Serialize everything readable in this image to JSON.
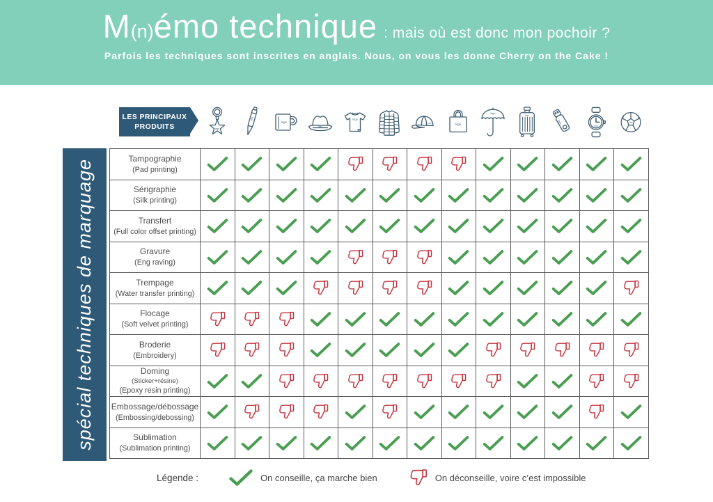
{
  "banner": {
    "title_m": "M",
    "title_n": "(n)",
    "title_rest": "émo technique",
    "title_sub": ": mais où est donc mon pochoir ?",
    "tagline": "Parfois les techniques sont inscrites en anglais. Nous, on vous les donne Cherry on the Cake !",
    "bg_color": "#82cfba"
  },
  "sidebar": {
    "text": "spécial techniques de marquage",
    "bg_color": "#2e5977"
  },
  "products_header": {
    "label": "LES PRINCIPAUX PRODUITS",
    "products": [
      {
        "id": "keychain"
      },
      {
        "id": "pen"
      },
      {
        "id": "mug"
      },
      {
        "id": "hat"
      },
      {
        "id": "tshirt"
      },
      {
        "id": "jacket"
      },
      {
        "id": "cap"
      },
      {
        "id": "bag"
      },
      {
        "id": "umbrella"
      },
      {
        "id": "suitcase"
      },
      {
        "id": "usb"
      },
      {
        "id": "watch"
      },
      {
        "id": "football"
      }
    ],
    "icon_logo_text": "logo"
  },
  "colors": {
    "banner_green": "#82cfba",
    "dark_blue": "#2e5977",
    "check_green": "#4a9e52",
    "thumb_red": "#c2333e",
    "icon_stroke": "#3e5c71"
  },
  "chart_data": {
    "type": "table",
    "title": "M(n)émo technique : mais où est donc mon pochoir ?",
    "columns": [
      "keychain",
      "pen",
      "mug",
      "hat",
      "tshirt",
      "jacket",
      "cap",
      "bag",
      "umbrella",
      "suitcase",
      "usb",
      "watch",
      "football"
    ],
    "rows": [
      {
        "fr": "Tampographie",
        "en": "(Pad printing)",
        "values": [
          "check",
          "check",
          "check",
          "check",
          "no",
          "no",
          "no",
          "no",
          "check",
          "check",
          "check",
          "check",
          "check"
        ]
      },
      {
        "fr": "Sérigraphie",
        "en": "(Silk printing)",
        "values": [
          "check",
          "check",
          "check",
          "check",
          "check",
          "check",
          "check",
          "check",
          "check",
          "check",
          "check",
          "check",
          "check"
        ]
      },
      {
        "fr": "Transfert",
        "en": "(Full color offset printing)",
        "values": [
          "check",
          "check",
          "check",
          "check",
          "check",
          "check",
          "check",
          "check",
          "check",
          "check",
          "check",
          "check",
          "check"
        ]
      },
      {
        "fr": "Gravure",
        "en": "(Eng raving)",
        "values": [
          "check",
          "check",
          "check",
          "check",
          "no",
          "no",
          "no",
          "check",
          "check",
          "check",
          "check",
          "check",
          "check"
        ]
      },
      {
        "fr": "Trempage",
        "en": "(Water transfer printing)",
        "values": [
          "check",
          "check",
          "check",
          "no",
          "no",
          "no",
          "no",
          "check",
          "check",
          "check",
          "check",
          "check",
          "no"
        ]
      },
      {
        "fr": "Flocage",
        "en": "(Soft velvet printing)",
        "values": [
          "no",
          "no",
          "no",
          "check",
          "check",
          "check",
          "check",
          "check",
          "check",
          "check",
          "check",
          "check",
          "check"
        ]
      },
      {
        "fr": "Broderie",
        "en": "(Embroidery)",
        "values": [
          "no",
          "no",
          "no",
          "check",
          "check",
          "check",
          "check",
          "check",
          "no",
          "no",
          "no",
          "no",
          "no"
        ]
      },
      {
        "fr": "Doming",
        "mid": "(Sticker+résine)",
        "en": "(Epoxy resin printing)",
        "values": [
          "check",
          "check",
          "no",
          "no",
          "no",
          "no",
          "no",
          "no",
          "no",
          "check",
          "check",
          "no",
          "no"
        ]
      },
      {
        "fr": "Embossage/débossage",
        "en": "(Embossing/debossing)",
        "values": [
          "check",
          "no",
          "no",
          "no",
          "check",
          "no",
          "check",
          "check",
          "check",
          "check",
          "check",
          "no",
          "check"
        ]
      },
      {
        "fr": "Sublimation",
        "en": "(Sublimation printing)",
        "values": [
          "check",
          "check",
          "check",
          "check",
          "check",
          "check",
          "check",
          "check",
          "check",
          "check",
          "check",
          "check",
          "check"
        ]
      }
    ]
  },
  "legend": {
    "label": "Légende :",
    "check_text": "On conseille, ça marche bien",
    "no_text": "On déconseille, voire c’est impossible"
  }
}
